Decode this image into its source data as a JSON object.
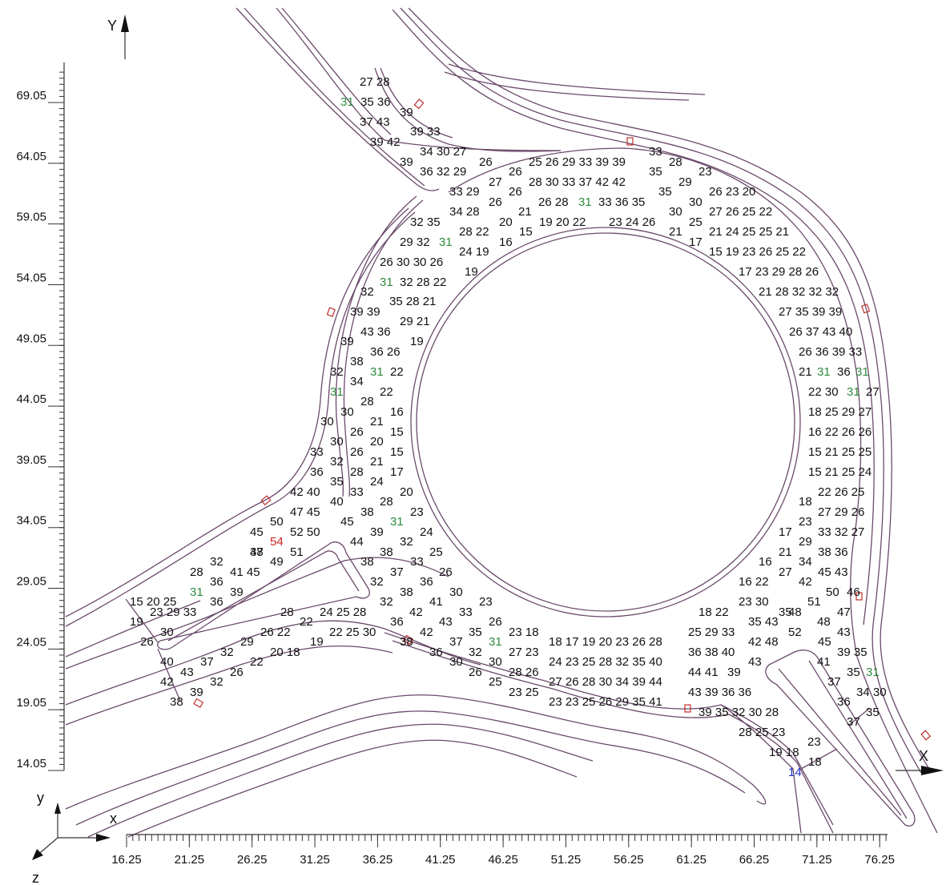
{
  "axes": {
    "x_title": "X",
    "y_title": "Y",
    "x_ticks": [
      "16.25",
      "21.25",
      "26.25",
      "31.25",
      "36.25",
      "41.25",
      "46.25",
      "51.25",
      "56.25",
      "61.25",
      "66.25",
      "71.25",
      "76.25"
    ],
    "y_ticks": [
      "69.05",
      "64.05",
      "59.05",
      "54.05",
      "49.05",
      "44.05",
      "39.05",
      "34.05",
      "29.05",
      "24.05",
      "19.05",
      "14.05"
    ],
    "triad": {
      "x": "x",
      "y": "y",
      "z": "z"
    }
  },
  "colors": {
    "normal": "#111111",
    "green": "#2e8b3e",
    "red": "#cc2222",
    "blue": "#2233cc",
    "road": "#6b4a6b"
  },
  "rows": [
    {
      "text": "27 28",
      "x": 449,
      "y": 107
    },
    {
      "text": "31",
      "x": 425,
      "y": 132,
      "c": "green"
    },
    {
      "text": "35 36",
      "x": 450,
      "y": 132
    },
    {
      "text": "39",
      "x": 499,
      "y": 145
    },
    {
      "text": "37 43",
      "x": 449,
      "y": 157
    },
    {
      "text": "39 33",
      "x": 512,
      "y": 169
    },
    {
      "text": "39 42",
      "x": 462,
      "y": 182
    },
    {
      "text": "34 30 27",
      "x": 524,
      "y": 194
    },
    {
      "text": "39",
      "x": 499,
      "y": 207
    },
    {
      "text": "36 32 29",
      "x": 524,
      "y": 219
    },
    {
      "text": "26",
      "x": 598,
      "y": 207
    },
    {
      "text": "25 26 29 33 39 39",
      "x": 660,
      "y": 207
    },
    {
      "text": "33",
      "x": 810,
      "y": 194
    },
    {
      "text": "28",
      "x": 835,
      "y": 207
    },
    {
      "text": "23",
      "x": 872,
      "y": 219
    },
    {
      "text": "26",
      "x": 635,
      "y": 219
    },
    {
      "text": "28 30 33 37 42 42",
      "x": 660,
      "y": 232
    },
    {
      "text": "35",
      "x": 810,
      "y": 219
    },
    {
      "text": "29",
      "x": 847,
      "y": 232
    },
    {
      "text": "27",
      "x": 610,
      "y": 232
    },
    {
      "text": "26",
      "x": 635,
      "y": 244
    },
    {
      "text": "33 29",
      "x": 561,
      "y": 244
    },
    {
      "text": "35",
      "x": 822,
      "y": 244
    },
    {
      "text": "30",
      "x": 860,
      "y": 257
    },
    {
      "text": "26 23 20",
      "x": 885,
      "y": 244
    },
    {
      "text": "26",
      "x": 610,
      "y": 257
    },
    {
      "text": "26 28",
      "x": 672,
      "y": 257
    },
    {
      "text": "31",
      "x": 722,
      "y": 257,
      "c": "green"
    },
    {
      "text": "33 36 35",
      "x": 747,
      "y": 257
    },
    {
      "text": "34 28",
      "x": 561,
      "y": 269
    },
    {
      "text": "21",
      "x": 647,
      "y": 269
    },
    {
      "text": "30",
      "x": 835,
      "y": 269
    },
    {
      "text": "27 26 25 22",
      "x": 885,
      "y": 269
    },
    {
      "text": "32 35",
      "x": 512,
      "y": 282
    },
    {
      "text": "20",
      "x": 623,
      "y": 282
    },
    {
      "text": "19 20 22",
      "x": 673,
      "y": 282
    },
    {
      "text": "23 24 26",
      "x": 760,
      "y": 282
    },
    {
      "text": "25",
      "x": 860,
      "y": 282
    },
    {
      "text": "28 22",
      "x": 573,
      "y": 294
    },
    {
      "text": "15",
      "x": 648,
      "y": 294
    },
    {
      "text": "21",
      "x": 835,
      "y": 294
    },
    {
      "text": "21 24 25 25 21",
      "x": 885,
      "y": 294
    },
    {
      "text": "29 32",
      "x": 499,
      "y": 307
    },
    {
      "text": "31",
      "x": 548,
      "y": 307,
      "c": "green"
    },
    {
      "text": "16",
      "x": 623,
      "y": 307
    },
    {
      "text": "17",
      "x": 860,
      "y": 307
    },
    {
      "text": "24 19",
      "x": 573,
      "y": 319
    },
    {
      "text": "15 19 23 26 25 22",
      "x": 885,
      "y": 319
    },
    {
      "text": "26 30 30 26",
      "x": 474,
      "y": 332
    },
    {
      "text": "19",
      "x": 580,
      "y": 344
    },
    {
      "text": "17 23 29 28 26",
      "x": 922,
      "y": 344
    },
    {
      "text": "31",
      "x": 474,
      "y": 357,
      "c": "green"
    },
    {
      "text": "32 28 22",
      "x": 499,
      "y": 357
    },
    {
      "text": "32",
      "x": 450,
      "y": 369
    },
    {
      "text": "35 28 21",
      "x": 486,
      "y": 381
    },
    {
      "text": "21 28 32 32 32",
      "x": 947,
      "y": 369
    },
    {
      "text": "39 39",
      "x": 437,
      "y": 394
    },
    {
      "text": "27 35 39 39",
      "x": 972,
      "y": 394
    },
    {
      "text": "43 36",
      "x": 450,
      "y": 419
    },
    {
      "text": "29 21",
      "x": 499,
      "y": 406
    },
    {
      "text": "19",
      "x": 512,
      "y": 431
    },
    {
      "text": "39",
      "x": 425,
      "y": 431
    },
    {
      "text": "26 37 43 40",
      "x": 985,
      "y": 419
    },
    {
      "text": "38",
      "x": 437,
      "y": 456
    },
    {
      "text": "36 26",
      "x": 462,
      "y": 444
    },
    {
      "text": "26 36 39 33",
      "x": 997,
      "y": 444
    },
    {
      "text": "32",
      "x": 412,
      "y": 469
    },
    {
      "text": "31",
      "x": 462,
      "y": 469,
      "c": "green"
    },
    {
      "text": "22",
      "x": 487,
      "y": 469
    },
    {
      "text": "34",
      "x": 437,
      "y": 481
    },
    {
      "text": "21",
      "x": 997,
      "y": 469
    },
    {
      "text": "31",
      "x": 1020,
      "y": 469,
      "c": "green"
    },
    {
      "text": "36",
      "x": 1045,
      "y": 469
    },
    {
      "text": "31",
      "x": 1068,
      "y": 469,
      "c": "green"
    },
    {
      "text": "31",
      "x": 412,
      "y": 494,
      "c": "green"
    },
    {
      "text": "22",
      "x": 474,
      "y": 494
    },
    {
      "text": "22 30",
      "x": 1009,
      "y": 494
    },
    {
      "text": "31",
      "x": 1057,
      "y": 494,
      "c": "green"
    },
    {
      "text": "27",
      "x": 1081,
      "y": 494
    },
    {
      "text": "28",
      "x": 450,
      "y": 506
    },
    {
      "text": "30",
      "x": 425,
      "y": 519
    },
    {
      "text": "21",
      "x": 462,
      "y": 531
    },
    {
      "text": "16",
      "x": 487,
      "y": 519
    },
    {
      "text": "18 25 29 27",
      "x": 1009,
      "y": 519
    },
    {
      "text": "30",
      "x": 400,
      "y": 531
    },
    {
      "text": "26",
      "x": 437,
      "y": 544
    },
    {
      "text": "15",
      "x": 487,
      "y": 544
    },
    {
      "text": "16 22 26 26",
      "x": 1009,
      "y": 544
    },
    {
      "text": "30",
      "x": 412,
      "y": 556
    },
    {
      "text": "20",
      "x": 462,
      "y": 556
    },
    {
      "text": "33",
      "x": 387,
      "y": 569
    },
    {
      "text": "26",
      "x": 437,
      "y": 569
    },
    {
      "text": "15",
      "x": 487,
      "y": 569
    },
    {
      "text": "15 21 25 25",
      "x": 1009,
      "y": 569
    },
    {
      "text": "32",
      "x": 412,
      "y": 581
    },
    {
      "text": "21",
      "x": 462,
      "y": 581
    },
    {
      "text": "36",
      "x": 387,
      "y": 594
    },
    {
      "text": "28",
      "x": 437,
      "y": 594
    },
    {
      "text": "17",
      "x": 487,
      "y": 594
    },
    {
      "text": "15 21 25 24",
      "x": 1009,
      "y": 594
    },
    {
      "text": "35",
      "x": 412,
      "y": 606
    },
    {
      "text": "24",
      "x": 462,
      "y": 606
    },
    {
      "text": "42 40",
      "x": 362,
      "y": 619
    },
    {
      "text": "33",
      "x": 437,
      "y": 619
    },
    {
      "text": "20",
      "x": 499,
      "y": 619
    },
    {
      "text": "22 26 25",
      "x": 1021,
      "y": 619
    },
    {
      "text": "40",
      "x": 412,
      "y": 631
    },
    {
      "text": "28",
      "x": 474,
      "y": 631
    },
    {
      "text": "18",
      "x": 997,
      "y": 631
    },
    {
      "text": "47 45",
      "x": 362,
      "y": 644
    },
    {
      "text": "38",
      "x": 450,
      "y": 644
    },
    {
      "text": "23",
      "x": 512,
      "y": 644
    },
    {
      "text": "23",
      "x": 997,
      "y": 656
    },
    {
      "text": "27 29 26",
      "x": 1021,
      "y": 644
    },
    {
      "text": "45",
      "x": 425,
      "y": 656
    },
    {
      "text": "50",
      "x": 337,
      "y": 656
    },
    {
      "text": "31",
      "x": 487,
      "y": 656,
      "c": "green"
    },
    {
      "text": "52 50",
      "x": 362,
      "y": 669
    },
    {
      "text": "39",
      "x": 462,
      "y": 669
    },
    {
      "text": "24",
      "x": 524,
      "y": 669
    },
    {
      "text": "17",
      "x": 972,
      "y": 669
    },
    {
      "text": "33 32 27",
      "x": 1021,
      "y": 669
    },
    {
      "text": "45",
      "x": 312,
      "y": 669
    },
    {
      "text": "54",
      "x": 337,
      "y": 681,
      "c": "red"
    },
    {
      "text": "44",
      "x": 437,
      "y": 681
    },
    {
      "text": "32",
      "x": 499,
      "y": 681
    },
    {
      "text": "29",
      "x": 997,
      "y": 681
    },
    {
      "text": "38",
      "x": 312,
      "y": 694
    },
    {
      "text": "47",
      "x": 312,
      "y": 694
    },
    {
      "text": "51",
      "x": 362,
      "y": 694
    },
    {
      "text": "38",
      "x": 474,
      "y": 694
    },
    {
      "text": "25",
      "x": 536,
      "y": 694
    },
    {
      "text": "21",
      "x": 972,
      "y": 694
    },
    {
      "text": "38 36",
      "x": 1021,
      "y": 694
    },
    {
      "text": "41 45",
      "x": 287,
      "y": 719
    },
    {
      "text": "49",
      "x": 337,
      "y": 706
    },
    {
      "text": "38",
      "x": 450,
      "y": 706
    },
    {
      "text": "33",
      "x": 512,
      "y": 706
    },
    {
      "text": "16",
      "x": 947,
      "y": 706
    },
    {
      "text": "34",
      "x": 997,
      "y": 706
    },
    {
      "text": "32",
      "x": 262,
      "y": 706
    },
    {
      "text": "36",
      "x": 262,
      "y": 731
    },
    {
      "text": "37",
      "x": 487,
      "y": 719
    },
    {
      "text": "26",
      "x": 548,
      "y": 719
    },
    {
      "text": "27",
      "x": 972,
      "y": 719
    },
    {
      "text": "45 43",
      "x": 1021,
      "y": 719
    },
    {
      "text": "28",
      "x": 237,
      "y": 719
    },
    {
      "text": "32",
      "x": 462,
      "y": 731
    },
    {
      "text": "36",
      "x": 524,
      "y": 731
    },
    {
      "text": "16 22",
      "x": 922,
      "y": 731
    },
    {
      "text": "42",
      "x": 997,
      "y": 731
    },
    {
      "text": "15 20 25",
      "x": 162,
      "y": 756
    },
    {
      "text": "31",
      "x": 237,
      "y": 744,
      "c": "green"
    },
    {
      "text": "39",
      "x": 287,
      "y": 744
    },
    {
      "text": "38",
      "x": 499,
      "y": 744
    },
    {
      "text": "30",
      "x": 561,
      "y": 744
    },
    {
      "text": "50",
      "x": 1031,
      "y": 744
    },
    {
      "text": "46",
      "x": 1057,
      "y": 744
    },
    {
      "text": "23 30",
      "x": 922,
      "y": 756
    },
    {
      "text": "36",
      "x": 262,
      "y": 756
    },
    {
      "text": "32",
      "x": 474,
      "y": 756
    },
    {
      "text": "41",
      "x": 536,
      "y": 756
    },
    {
      "text": "23",
      "x": 598,
      "y": 756
    },
    {
      "text": "51",
      "x": 1008,
      "y": 756
    },
    {
      "text": "23 29 33",
      "x": 187,
      "y": 769
    },
    {
      "text": "28",
      "x": 350,
      "y": 769
    },
    {
      "text": "24 25 28",
      "x": 399,
      "y": 769
    },
    {
      "text": "42",
      "x": 511,
      "y": 769
    },
    {
      "text": "33",
      "x": 573,
      "y": 769
    },
    {
      "text": "18 22",
      "x": 872,
      "y": 769
    },
    {
      "text": "35",
      "x": 972,
      "y": 769
    },
    {
      "text": "48",
      "x": 984,
      "y": 769
    },
    {
      "text": "47",
      "x": 1045,
      "y": 769
    },
    {
      "text": "19",
      "x": 162,
      "y": 781
    },
    {
      "text": "22",
      "x": 374,
      "y": 781
    },
    {
      "text": "36",
      "x": 487,
      "y": 781
    },
    {
      "text": "43",
      "x": 548,
      "y": 781
    },
    {
      "text": "26",
      "x": 610,
      "y": 781
    },
    {
      "text": "35 43",
      "x": 934,
      "y": 781
    },
    {
      "text": "48",
      "x": 1020,
      "y": 781
    },
    {
      "text": "30",
      "x": 200,
      "y": 794
    },
    {
      "text": "26 22",
      "x": 325,
      "y": 794
    },
    {
      "text": "22 25 30",
      "x": 411,
      "y": 794
    },
    {
      "text": "42",
      "x": 524,
      "y": 794
    },
    {
      "text": "35",
      "x": 585,
      "y": 794
    },
    {
      "text": "23 18",
      "x": 635,
      "y": 794
    },
    {
      "text": "25 29 33",
      "x": 859,
      "y": 794
    },
    {
      "text": "52",
      "x": 984,
      "y": 794
    },
    {
      "text": "43",
      "x": 1045,
      "y": 794
    },
    {
      "text": "26",
      "x": 175,
      "y": 806
    },
    {
      "text": "29",
      "x": 300,
      "y": 806
    },
    {
      "text": "19",
      "x": 387,
      "y": 806
    },
    {
      "text": "38",
      "x": 499,
      "y": 806
    },
    {
      "text": "37",
      "x": 561,
      "y": 806
    },
    {
      "text": "31",
      "x": 610,
      "y": 806,
      "c": "green"
    },
    {
      "text": "18 17 19 20 23 26 28",
      "x": 685,
      "y": 806
    },
    {
      "text": "42 48",
      "x": 934,
      "y": 806
    },
    {
      "text": "45",
      "x": 1021,
      "y": 806
    },
    {
      "text": "32",
      "x": 275,
      "y": 819
    },
    {
      "text": "20 18",
      "x": 337,
      "y": 819
    },
    {
      "text": "36",
      "x": 536,
      "y": 819
    },
    {
      "text": "32",
      "x": 585,
      "y": 819
    },
    {
      "text": "27 23",
      "x": 635,
      "y": 819
    },
    {
      "text": "36 38 40",
      "x": 859,
      "y": 819
    },
    {
      "text": "39 35",
      "x": 1045,
      "y": 819
    },
    {
      "text": "40",
      "x": 200,
      "y": 831
    },
    {
      "text": "37",
      "x": 250,
      "y": 831
    },
    {
      "text": "22",
      "x": 312,
      "y": 831
    },
    {
      "text": "30",
      "x": 561,
      "y": 831
    },
    {
      "text": "30",
      "x": 610,
      "y": 831
    },
    {
      "text": "24 23 25 28 32 35 40",
      "x": 685,
      "y": 831
    },
    {
      "text": "43",
      "x": 934,
      "y": 831
    },
    {
      "text": "41",
      "x": 1020,
      "y": 831
    },
    {
      "text": "43",
      "x": 225,
      "y": 844
    },
    {
      "text": "26",
      "x": 287,
      "y": 844
    },
    {
      "text": "26",
      "x": 585,
      "y": 844
    },
    {
      "text": "28 26",
      "x": 635,
      "y": 844
    },
    {
      "text": "44 41",
      "x": 859,
      "y": 844
    },
    {
      "text": "39",
      "x": 908,
      "y": 844
    },
    {
      "text": "35",
      "x": 1057,
      "y": 844
    },
    {
      "text": "31",
      "x": 1081,
      "y": 844,
      "c": "green"
    },
    {
      "text": "42",
      "x": 200,
      "y": 856
    },
    {
      "text": "32",
      "x": 262,
      "y": 856
    },
    {
      "text": "25",
      "x": 610,
      "y": 856
    },
    {
      "text": "27 26 28 30 34 39 44",
      "x": 685,
      "y": 856
    },
    {
      "text": "37",
      "x": 1033,
      "y": 856
    },
    {
      "text": "39",
      "x": 237,
      "y": 869
    },
    {
      "text": "23 25",
      "x": 635,
      "y": 869
    },
    {
      "text": "43 39 36 36",
      "x": 859,
      "y": 869
    },
    {
      "text": "34 30",
      "x": 1069,
      "y": 869
    },
    {
      "text": "38",
      "x": 212,
      "y": 881
    },
    {
      "text": "23 23 25 26 29 35 41",
      "x": 685,
      "y": 881
    },
    {
      "text": "36",
      "x": 1045,
      "y": 881
    },
    {
      "text": "39 35 32 30 28",
      "x": 872,
      "y": 894
    },
    {
      "text": "35",
      "x": 1081,
      "y": 894
    },
    {
      "text": "37",
      "x": 1057,
      "y": 906
    },
    {
      "text": "28 25 23",
      "x": 922,
      "y": 919
    },
    {
      "text": "23",
      "x": 1008,
      "y": 931
    },
    {
      "text": "19 18",
      "x": 960,
      "y": 944
    },
    {
      "text": "18",
      "x": 1009,
      "y": 956
    },
    {
      "text": "14",
      "x": 984,
      "y": 969,
      "c": "blue"
    }
  ]
}
